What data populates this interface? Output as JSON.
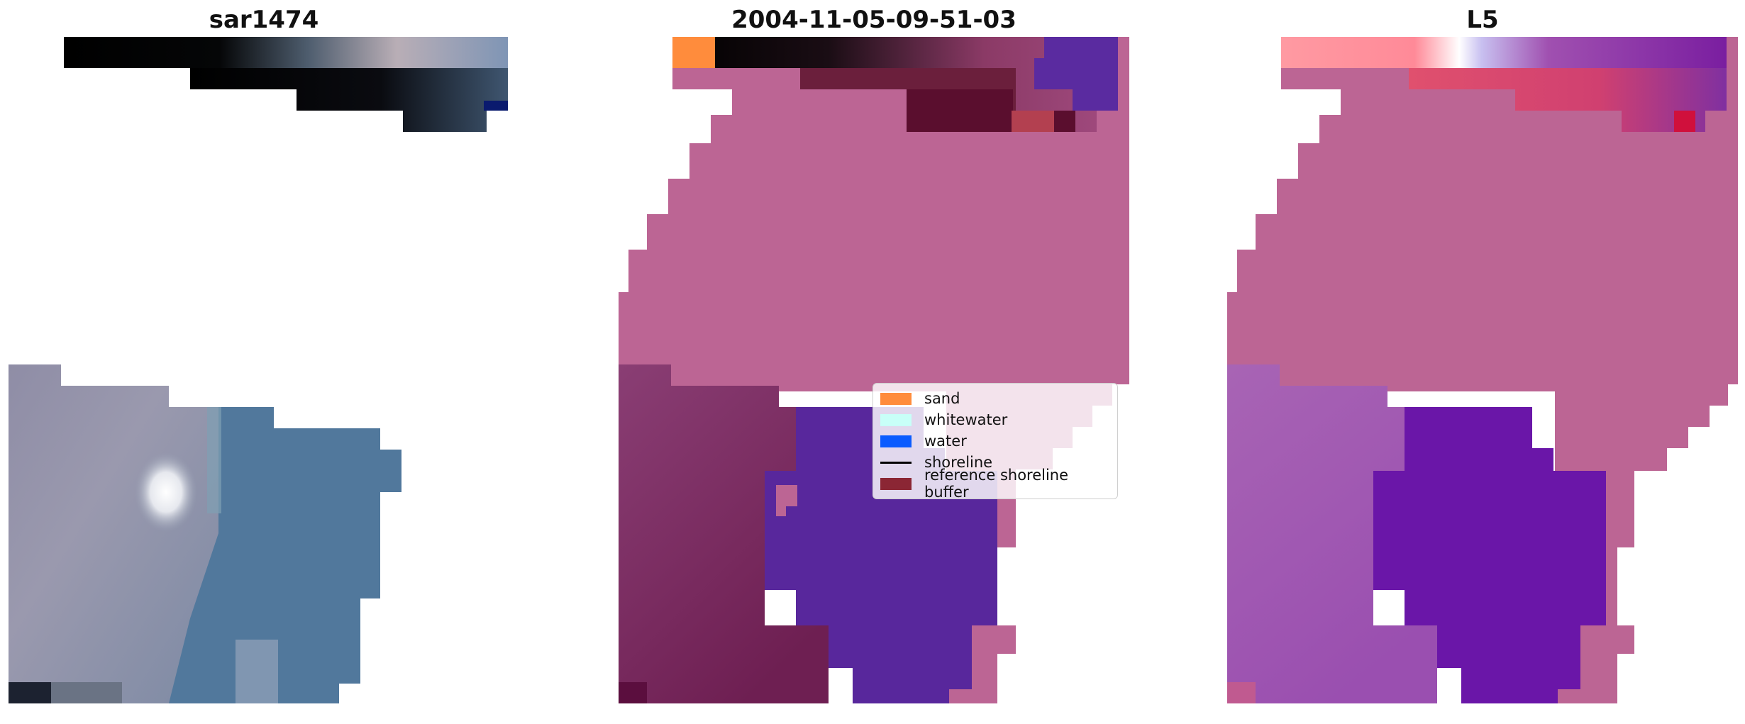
{
  "panels": [
    {
      "title": "sar1474"
    },
    {
      "title": "2004-11-05-09-51-03"
    },
    {
      "title": "L5"
    }
  ],
  "legend": {
    "items": [
      {
        "label": "sand",
        "color": "#ff8c3c",
        "kind": "patch"
      },
      {
        "label": "whitewater",
        "color": "#c8fff8",
        "kind": "patch"
      },
      {
        "label": "water",
        "color": "#0a5cff",
        "kind": "patch"
      },
      {
        "label": "shoreline",
        "color": "#000000",
        "kind": "line"
      },
      {
        "label": "reference shoreline buffer",
        "color": "#8b2634",
        "kind": "patch"
      }
    ]
  },
  "colors": {
    "sand_overlay": "#bc6594",
    "water_overlay": "#58279c",
    "rgb_water": "#507ea3",
    "l5_purple": "#9b4fb0"
  }
}
